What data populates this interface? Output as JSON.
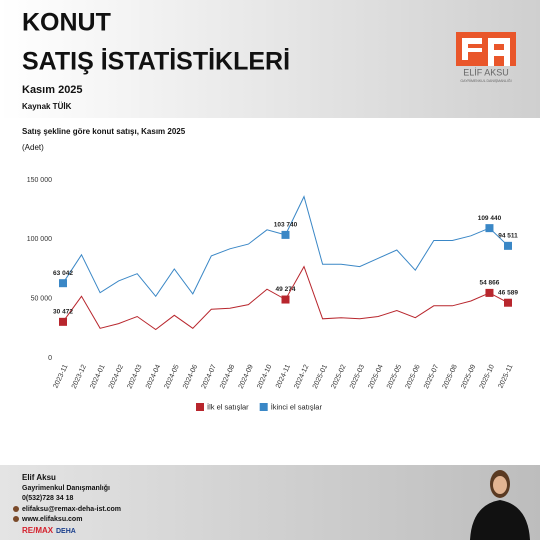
{
  "header": {
    "title_line1": "KONUT",
    "title_line2": "SATIŞ İSTATİSTİKLERİ",
    "period": "Kasım 2025",
    "source": "Kaynak TÜİK",
    "logo_name": "ELİF AKSU",
    "logo_sub": "GAYRİMENKUL DANIŞMANLIĞI"
  },
  "chart_data": {
    "type": "line",
    "title": "Satış şekline göre konut satışı, Kasım 2025",
    "unit_label": "(Adet)",
    "categories": [
      "2023-11",
      "2023-12",
      "2024-01",
      "2024-02",
      "2024-03",
      "2024-04",
      "2024-05",
      "2024-06",
      "2024-07",
      "2024-08",
      "2024-09",
      "2024-10",
      "2024-11",
      "2024-12",
      "2025-01",
      "2025-02",
      "2025-03",
      "2025-04",
      "2025-05",
      "2025-06",
      "2025-07",
      "2025-08",
      "2025-09",
      "2025-10",
      "2025-11"
    ],
    "series": [
      {
        "name": "İlk el satışlar",
        "color": "#b8262d",
        "values": [
          30472,
          52000,
          25000,
          29000,
          35000,
          24000,
          36000,
          25000,
          41000,
          42000,
          45000,
          58000,
          49274,
          77000,
          33000,
          34000,
          33000,
          35000,
          40000,
          34000,
          44000,
          44000,
          48000,
          54866,
          46589
        ],
        "value_labels": [
          "30 472",
          null,
          null,
          null,
          null,
          null,
          null,
          null,
          null,
          null,
          null,
          null,
          "49 274",
          null,
          null,
          null,
          null,
          null,
          null,
          null,
          null,
          null,
          null,
          "54 866",
          "46 589"
        ]
      },
      {
        "name": "İkinci el satışlar",
        "color": "#3a87c6",
        "values": [
          63042,
          87000,
          55000,
          65000,
          71000,
          52000,
          75000,
          54000,
          86000,
          92000,
          96000,
          108000,
          103740,
          136000,
          79000,
          79000,
          77000,
          84000,
          91000,
          74000,
          99000,
          99000,
          103000,
          109440,
          94511
        ],
        "value_labels": [
          "63 042",
          null,
          null,
          null,
          null,
          null,
          null,
          null,
          null,
          null,
          null,
          null,
          "103 740",
          null,
          null,
          null,
          null,
          null,
          null,
          null,
          null,
          null,
          null,
          "109 440",
          "94 511"
        ]
      }
    ],
    "ylim": [
      0,
      150000
    ],
    "yticks": [
      0,
      {
        "value": 50000,
        "label": "50 000"
      },
      {
        "value": 100000,
        "label": "100 000"
      },
      {
        "value": 150000,
        "label": "150 000"
      }
    ],
    "grid": false
  },
  "footer": {
    "name": "Elif Aksu",
    "role": "Gayrimenkul Danışmanlığı",
    "phone": "0(532)728 34 18",
    "email": "elifaksu@remax-deha-ist.com",
    "web": "www.elifaksu.com",
    "brand": "RE/MAX",
    "office": "DEHA"
  }
}
